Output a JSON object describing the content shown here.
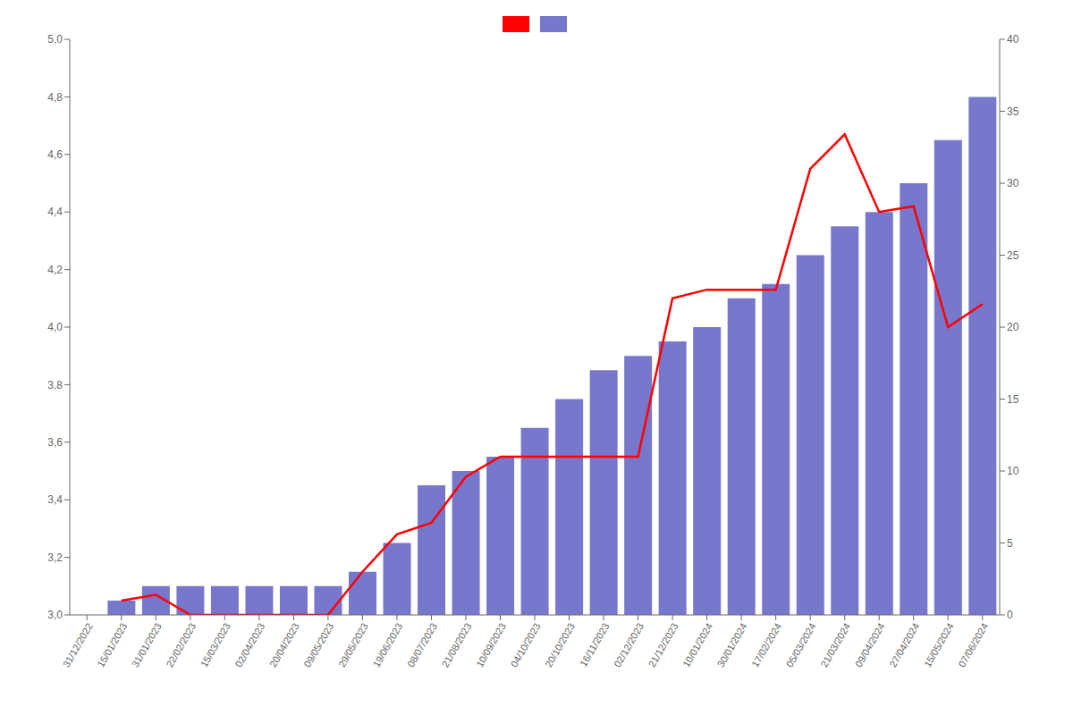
{
  "chart_data": {
    "type": "bar",
    "categories": [
      "31/12/2022",
      "15/01/2023",
      "31/01/2023",
      "22/02/2023",
      "15/03/2023",
      "02/04/2023",
      "20/04/2023",
      "09/05/2023",
      "29/05/2023",
      "19/06/2023",
      "08/07/2023",
      "21/08/2023",
      "10/09/2023",
      "04/10/2023",
      "20/10/2023",
      "16/11/2023",
      "02/12/2023",
      "21/12/2023",
      "10/01/2024",
      "30/01/2024",
      "17/02/2024",
      "05/03/2024",
      "21/03/2024",
      "09/04/2024",
      "27/04/2024",
      "15/05/2024",
      "07/06/2024"
    ],
    "series": [
      {
        "type": "line",
        "color": "#ff0000",
        "values": [
          null,
          3.05,
          3.07,
          3.0,
          3.0,
          3.0,
          3.0,
          3.0,
          3.15,
          3.28,
          3.32,
          3.48,
          3.55,
          3.55,
          3.55,
          3.55,
          3.55,
          4.1,
          4.13,
          4.13,
          4.13,
          4.55,
          4.67,
          4.4,
          4.42,
          4.0,
          4.08
        ]
      },
      {
        "type": "bar",
        "color": "#7777cc",
        "axis": "y2",
        "values": [
          0,
          1,
          2,
          2,
          2,
          2,
          2,
          2,
          3,
          5,
          9,
          10,
          11,
          13,
          15,
          17,
          18,
          19,
          20,
          22,
          23,
          25,
          27,
          28,
          30,
          33,
          36
        ]
      }
    ],
    "ylim": [
      3.0,
      5.0
    ],
    "yticks": [
      {
        "value": 3.0,
        "label": "3,0"
      },
      {
        "value": 3.2,
        "label": "3,2"
      },
      {
        "value": 3.4,
        "label": "3,4"
      },
      {
        "value": 3.6,
        "label": "3,6"
      },
      {
        "value": 3.8,
        "label": "3,8"
      },
      {
        "value": 4.0,
        "label": "4,0"
      },
      {
        "value": 4.2,
        "label": "4,2"
      },
      {
        "value": 4.4,
        "label": "4,4"
      },
      {
        "value": 4.6,
        "label": "4,6"
      },
      {
        "value": 4.8,
        "label": "4,8"
      },
      {
        "value": 5.0,
        "label": "5,0"
      }
    ],
    "y2lim": [
      0,
      40
    ],
    "y2ticks": [
      0,
      5,
      10,
      15,
      20,
      25,
      30,
      35,
      40
    ],
    "grid": false,
    "legend": "top"
  }
}
